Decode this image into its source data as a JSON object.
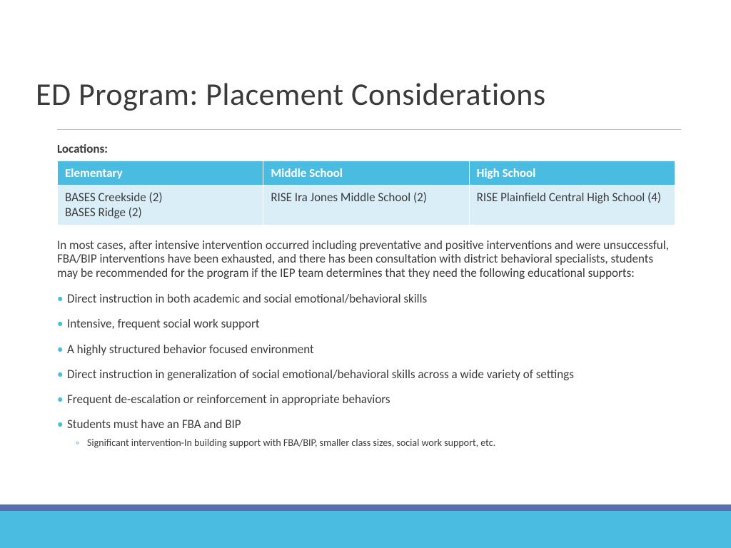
{
  "title": "ED Program: Placement Considerations",
  "locations_label": "Locations:",
  "table": {
    "headers": [
      "Elementary",
      "Middle School",
      "High School"
    ],
    "cells": [
      "BASES Creekside (2)\nBASES Ridge (2)",
      "RISE Ira Jones Middle School (2)",
      "RISE Plainfield Central High School (4)"
    ],
    "header_bg": "#4bbce1",
    "header_fg": "#ffffff",
    "cell_bg": "#daeef8",
    "cell_fg": "#3a3a3a"
  },
  "intro": "In most cases, after intensive intervention occurred including preventative and positive interventions and were unsuccessful, FBA/BIP interventions have been exhausted, and there has been consultation with district behavioral specialists, students may be recommended for the program if the IEP team determines that they need the following educational supports:",
  "bullets": [
    {
      "text": "Direct instruction in both academic and social emotional/behavioral skills"
    },
    {
      "text": "Intensive, frequent social work support"
    },
    {
      "text": "A highly structured behavior focused environment"
    },
    {
      "text": "Direct instruction in generalization of social emotional/behavioral skills across a wide variety of settings"
    },
    {
      "text": "Frequent de-escalation or reinforcement in appropriate behaviors"
    },
    {
      "text": "Students must have an FBA and BIP",
      "sub": [
        "Significant intervention-In building support with FBA/BIP, smaller class sizes, social work support, etc."
      ]
    }
  ],
  "colors": {
    "title": "#3a3a3a",
    "body": "#3a3a3a",
    "accent": "#4bbce1",
    "footer_purple": "#5a6fb0",
    "footer_cyan": "#4bbce1",
    "rule": "#bfbfbf"
  },
  "fonts": {
    "title_size_pt": 34,
    "body_size_pt": 13,
    "sub_size_pt": 11
  }
}
